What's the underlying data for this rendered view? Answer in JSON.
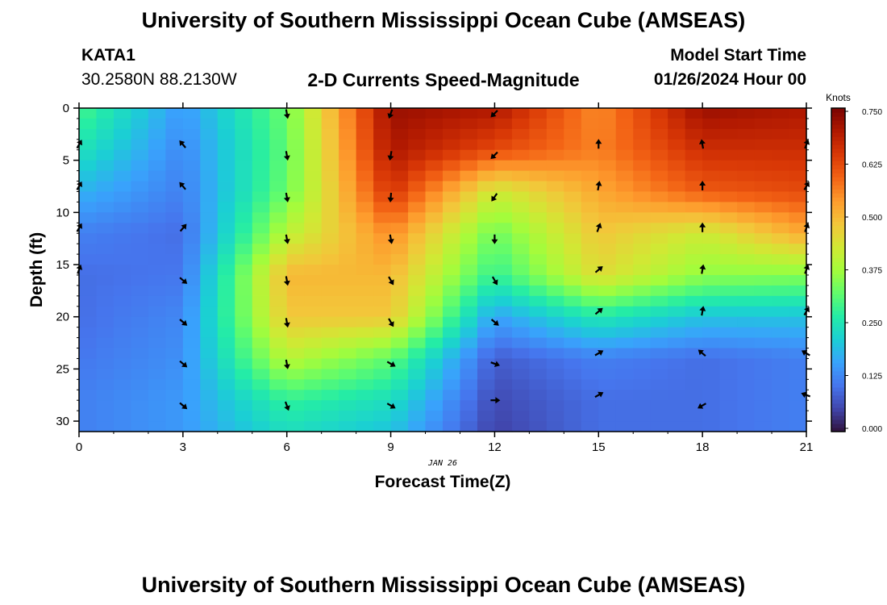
{
  "page": {
    "title_top": "University of Southern Mississippi Ocean Cube (AMSEAS)",
    "station": "KATA1",
    "coords": "30.2580N  88.2130W",
    "plot_title": "2-D Currents Speed-Magnitude",
    "model_start_label": "Model Start Time",
    "model_start_value": "01/26/2024 Hour 00",
    "title_bottom": "University of Southern Mississippi Ocean Cube (AMSEAS)"
  },
  "chart_data": {
    "type": "heatmap",
    "title": "2-D Currents Speed-Magnitude",
    "xlabel": "Forecast Time(Z)",
    "ylabel": "Depth (ft)",
    "date_label": "JAN 26",
    "xlim": [
      0,
      21
    ],
    "ylim": [
      0,
      31
    ],
    "y_inverted": true,
    "x_ticks": [
      0,
      3,
      6,
      9,
      12,
      15,
      18,
      21
    ],
    "y_ticks": [
      0,
      5,
      10,
      15,
      20,
      25,
      30
    ],
    "colorbar": {
      "label": "Knots",
      "range": [
        0.0,
        0.75
      ],
      "ticks": [
        "0.000",
        "0.125",
        "0.250",
        "0.375",
        "0.500",
        "0.625",
        "0.750"
      ],
      "colors": [
        "#30123b",
        "#4145ab",
        "#4675ed",
        "#39a2fc",
        "#1bcfd4",
        "#24eca6",
        "#61fc6c",
        "#a4fc3b",
        "#d1e834",
        "#f3c63a",
        "#fe9b2d",
        "#f36315",
        "#d93806",
        "#b11901",
        "#7a0402"
      ]
    },
    "speed_grid": {
      "times": [
        0,
        3,
        6,
        9,
        12,
        15,
        18,
        21
      ],
      "depths": [
        0,
        4,
        8,
        12,
        16,
        20,
        24,
        28,
        31
      ],
      "values": [
        [
          0.3,
          0.15,
          0.33,
          0.72,
          0.7,
          0.55,
          0.72,
          0.7
        ],
        [
          0.25,
          0.13,
          0.32,
          0.7,
          0.62,
          0.56,
          0.66,
          0.66
        ],
        [
          0.18,
          0.12,
          0.33,
          0.65,
          0.42,
          0.52,
          0.6,
          0.62
        ],
        [
          0.12,
          0.1,
          0.4,
          0.55,
          0.33,
          0.48,
          0.42,
          0.52
        ],
        [
          0.1,
          0.11,
          0.5,
          0.5,
          0.28,
          0.45,
          0.36,
          0.35
        ],
        [
          0.1,
          0.13,
          0.48,
          0.48,
          0.16,
          0.26,
          0.2,
          0.2
        ],
        [
          0.11,
          0.14,
          0.4,
          0.32,
          0.08,
          0.12,
          0.1,
          0.12
        ],
        [
          0.12,
          0.15,
          0.28,
          0.24,
          0.06,
          0.1,
          0.1,
          0.12
        ],
        [
          0.12,
          0.15,
          0.24,
          0.2,
          0.05,
          0.1,
          0.1,
          0.12
        ]
      ]
    },
    "vectors": [
      {
        "t": 0,
        "d": 3.5,
        "angle": 30
      },
      {
        "t": 0,
        "d": 7.5,
        "angle": 30
      },
      {
        "t": 0,
        "d": 11.5,
        "angle": 30
      },
      {
        "t": 0,
        "d": 15.5,
        "angle": 20
      },
      {
        "t": 3,
        "d": 3.5,
        "angle": -40
      },
      {
        "t": 3,
        "d": 7.5,
        "angle": -40
      },
      {
        "t": 3,
        "d": 11.5,
        "angle": 40
      },
      {
        "t": 3,
        "d": 16.5,
        "angle": 130
      },
      {
        "t": 3,
        "d": 20.5,
        "angle": 130
      },
      {
        "t": 3,
        "d": 24.5,
        "angle": 130
      },
      {
        "t": 3,
        "d": 28.5,
        "angle": 130
      },
      {
        "t": 6,
        "d": 0.5,
        "angle": 170
      },
      {
        "t": 6,
        "d": 4.5,
        "angle": 170
      },
      {
        "t": 6,
        "d": 8.5,
        "angle": 170
      },
      {
        "t": 6,
        "d": 12.5,
        "angle": 170
      },
      {
        "t": 6,
        "d": 16.5,
        "angle": 170
      },
      {
        "t": 6,
        "d": 20.5,
        "angle": 170
      },
      {
        "t": 6,
        "d": 24.5,
        "angle": 170
      },
      {
        "t": 6,
        "d": 28.5,
        "angle": 160
      },
      {
        "t": 9,
        "d": 0.5,
        "angle": 200
      },
      {
        "t": 9,
        "d": 4.5,
        "angle": 190
      },
      {
        "t": 9,
        "d": 8.5,
        "angle": 185
      },
      {
        "t": 9,
        "d": 12.5,
        "angle": 170
      },
      {
        "t": 9,
        "d": 16.5,
        "angle": 150
      },
      {
        "t": 9,
        "d": 20.5,
        "angle": 150
      },
      {
        "t": 9,
        "d": 24.5,
        "angle": 120
      },
      {
        "t": 9,
        "d": 28.5,
        "angle": 120
      },
      {
        "t": 12,
        "d": 0.5,
        "angle": 225
      },
      {
        "t": 12,
        "d": 4.5,
        "angle": 225
      },
      {
        "t": 12,
        "d": 8.5,
        "angle": 215
      },
      {
        "t": 12,
        "d": 12.5,
        "angle": 180
      },
      {
        "t": 12,
        "d": 16.5,
        "angle": 150
      },
      {
        "t": 12,
        "d": 20.5,
        "angle": 130
      },
      {
        "t": 12,
        "d": 24.5,
        "angle": 110
      },
      {
        "t": 12,
        "d": 28,
        "angle": 90
      },
      {
        "t": 15,
        "d": 3.5,
        "angle": 0
      },
      {
        "t": 15,
        "d": 7.5,
        "angle": 10
      },
      {
        "t": 15,
        "d": 11.5,
        "angle": 20
      },
      {
        "t": 15,
        "d": 15.5,
        "angle": 50
      },
      {
        "t": 15,
        "d": 19.5,
        "angle": 50
      },
      {
        "t": 15,
        "d": 23.5,
        "angle": 60
      },
      {
        "t": 15,
        "d": 27.5,
        "angle": 60
      },
      {
        "t": 18,
        "d": 3.5,
        "angle": -10
      },
      {
        "t": 18,
        "d": 7.5,
        "angle": 0
      },
      {
        "t": 18,
        "d": 11.5,
        "angle": 0
      },
      {
        "t": 18,
        "d": 15.5,
        "angle": 10
      },
      {
        "t": 18,
        "d": 19.5,
        "angle": 10
      },
      {
        "t": 18,
        "d": 23.5,
        "angle": -50
      },
      {
        "t": 18,
        "d": 28.5,
        "angle": 240
      },
      {
        "t": 21,
        "d": 3.5,
        "angle": 20
      },
      {
        "t": 21,
        "d": 7.5,
        "angle": 30
      },
      {
        "t": 21,
        "d": 11.5,
        "angle": 20
      },
      {
        "t": 21,
        "d": 15.5,
        "angle": 20
      },
      {
        "t": 21,
        "d": 19.5,
        "angle": 30
      },
      {
        "t": 21,
        "d": 23.5,
        "angle": -60
      },
      {
        "t": 21,
        "d": 27.5,
        "angle": -70
      }
    ]
  }
}
